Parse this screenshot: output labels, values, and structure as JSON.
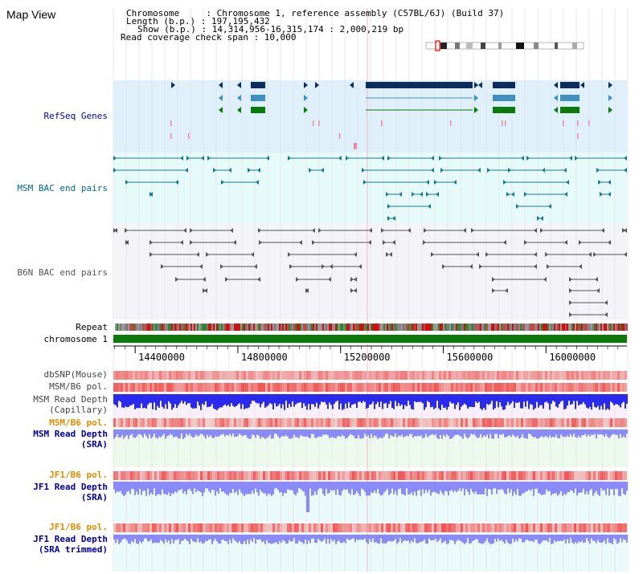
{
  "window": {
    "title": "Map View"
  },
  "info": {
    "chromosome_line": "Chromosome     : Chromosome 1, reference assembly (C57BL/6J) (Build 37)",
    "length_line": "Length (b.p.) : 197,195,432",
    "show_line": "Show (b.p.) : 14,314,956-16,315,174 : 2,000,219 bp",
    "span_line": "Read coverage check span : 10,000"
  },
  "tracks": {
    "refseq": {
      "label": "RefSeq Genes",
      "color": "#000099"
    },
    "msm_bac": {
      "label": "MSM BAC end pairs",
      "color": "#006688"
    },
    "b6n_bac": {
      "label": "B6N BAC end pairs",
      "color": "#555555"
    },
    "repeat": {
      "label": "Repeat"
    },
    "chromosome": {
      "label": "chromosome 1"
    },
    "dbsnp": {
      "label": "dbSNP(Mouse)"
    },
    "msm_b6_pol_1": {
      "label": "MSM/B6 pol."
    },
    "msm_depth_cap": {
      "label": "MSM Read Depth",
      "sub": "(Capillary)"
    },
    "msm_b6_pol_2": {
      "label": "MSM/B6 pol.",
      "color": "#e08a00"
    },
    "msm_depth_sra": {
      "label": "MSM Read Depth",
      "sub": "(SRA)"
    },
    "jf1_b6_pol_1": {
      "label": "JF1/B6 pol.",
      "color": "#e08a00"
    },
    "jf1_depth_sra": {
      "label": "JF1 Read Depth",
      "sub": "(SRA)"
    },
    "jf1_b6_pol_2": {
      "label": "JF1/B6 pol.",
      "color": "#e08a00"
    },
    "jf1_depth_trim": {
      "label": "JF1 Read Depth",
      "sub": "(SRA trimmed)"
    }
  },
  "axis": {
    "ticks": [
      {
        "value": 14400000,
        "label": "14400000"
      },
      {
        "value": 14800000,
        "label": "14800000"
      },
      {
        "value": 15200000,
        "label": "15200000"
      },
      {
        "value": 15600000,
        "label": "15600000"
      },
      {
        "value": 16000000,
        "label": "16000000"
      }
    ],
    "range": [
      14314956,
      16315174
    ]
  },
  "colors": {
    "refseq_bg": "#dff0fa",
    "msm_bg": "#e6fafa",
    "b6n_bg": "#f4f4f8",
    "gene_dark": "#0b2e5e",
    "gene_mid": "#3f8fbf",
    "gene_green": "#0a7a0a",
    "chrom_green": "#0a7a0a",
    "depth_blue": "#2a2aee",
    "depth_light": "#8a8af8",
    "snp_red": "#f05050"
  }
}
